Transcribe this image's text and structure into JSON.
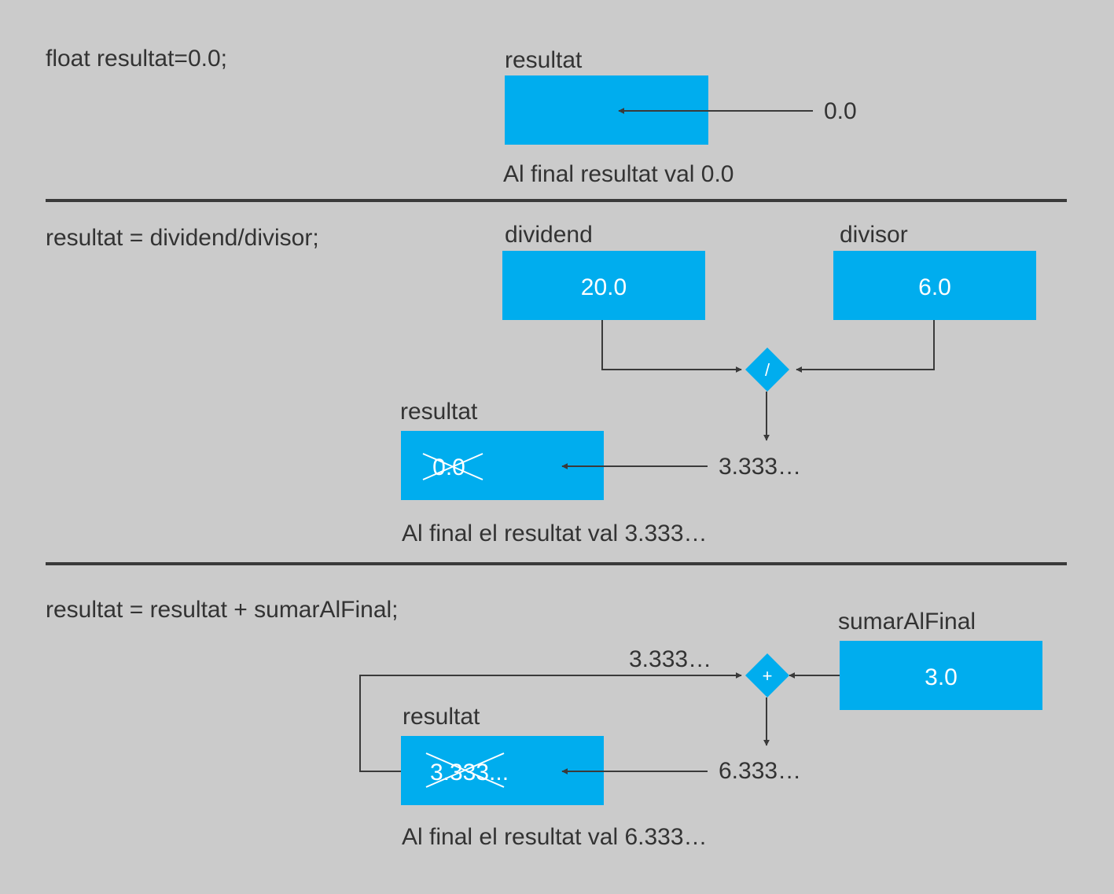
{
  "colors": {
    "background": "#cbcbcb",
    "box": "#00adee",
    "line": "#3a3a3a",
    "text": "#333333",
    "box_text": "#ffffff"
  },
  "step1": {
    "code": "float resultat=0.0;",
    "var_label": "resultat",
    "input_value": "0.0",
    "caption": "Al final resultat val 0.0"
  },
  "step2": {
    "code": "resultat = dividend/divisor;",
    "dividend_label": "dividend",
    "dividend_value": "20.0",
    "divisor_label": "divisor",
    "divisor_value": "6.0",
    "operator": "/",
    "result_label": "resultat",
    "old_value": "0.0",
    "new_value": "3.333…",
    "caption": "Al final el resultat val 3.333…"
  },
  "step3": {
    "code": "resultat = resultat + sumarAlFinal;",
    "addend_label": "sumarAlFinal",
    "addend_value": "3.0",
    "operator": "+",
    "feedback_value": "3.333…",
    "result_label": "resultat",
    "old_value": "3.333...",
    "new_value": "6.333…",
    "caption": "Al final el resultat val 6.333…"
  }
}
